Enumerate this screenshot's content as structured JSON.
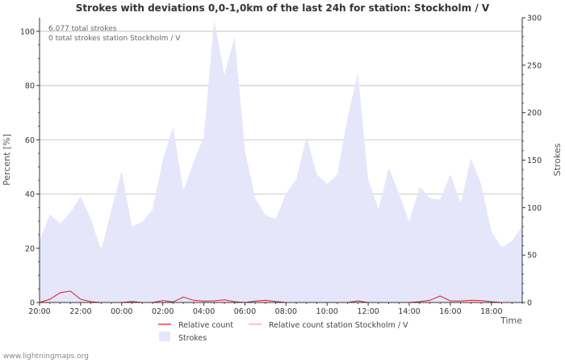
{
  "chart_data": {
    "type": "area",
    "title": "Strokes with deviations 0,0-1,0km of the last 24h for station: Stockholm / V",
    "xlabel": "Time",
    "ylabel_left": "Percent   [%]",
    "ylabel_right": "Strokes",
    "y_left_lim": [
      0,
      105
    ],
    "y_right_lim": [
      0,
      300
    ],
    "y_left_ticks": [
      0,
      20,
      40,
      60,
      80,
      100
    ],
    "y_right_ticks": [
      0,
      50,
      100,
      150,
      200,
      250,
      300
    ],
    "x_range_hours": [
      0,
      23.5
    ],
    "x_tick_hours": [
      0,
      2,
      4,
      6,
      8,
      10,
      12,
      14,
      16,
      18,
      20,
      22
    ],
    "x_tick_labels": [
      "20:00",
      "22:00",
      "00:00",
      "02:00",
      "04:00",
      "06:00",
      "08:00",
      "10:00",
      "12:00",
      "14:00",
      "16:00",
      "18:00"
    ],
    "annotations": [
      "6.077 total strokes",
      "0 total strokes station Stockholm / V"
    ],
    "legend": [
      "Relative count",
      "Relative count station Stockholm / V",
      "Strokes"
    ],
    "colors": {
      "strokes_fill": "#e6e6fb",
      "relative": "#d22222",
      "relative_station": "#f0a0a0",
      "grid": "#bbbbbb",
      "axis": "#333333"
    },
    "series": [
      {
        "name": "Strokes",
        "axis": "right",
        "x": [
          0,
          0.5,
          1,
          1.5,
          2,
          2.5,
          3,
          3.5,
          4,
          4.5,
          5,
          5.5,
          6,
          6.5,
          7,
          7.5,
          8,
          8.5,
          9,
          9.5,
          10,
          10.5,
          11,
          11.5,
          12,
          12.5,
          13,
          13.5,
          14,
          14.5,
          15,
          15.5,
          16,
          16.5,
          17,
          17.5,
          18,
          18.5,
          19,
          19.5,
          20,
          20.5,
          21,
          21.5,
          22,
          22.5,
          23,
          23.5
        ],
        "values": [
          65,
          93,
          83,
          95,
          112,
          88,
          55,
          98,
          138,
          80,
          85,
          98,
          150,
          185,
          118,
          148,
          175,
          298,
          240,
          280,
          160,
          110,
          92,
          88,
          115,
          130,
          175,
          135,
          125,
          135,
          195,
          242,
          130,
          98,
          142,
          115,
          85,
          122,
          110,
          108,
          135,
          105,
          152,
          125,
          75,
          58,
          65,
          80
        ]
      },
      {
        "name": "Relative count",
        "axis": "left",
        "x": [
          0,
          0.5,
          1,
          1.5,
          2,
          2.5,
          3,
          3.5,
          4,
          4.5,
          5,
          5.5,
          6,
          6.5,
          7,
          7.5,
          8,
          8.5,
          9,
          9.5,
          10,
          10.5,
          11,
          11.5,
          12,
          12.5,
          13,
          13.5,
          14,
          14.5,
          15,
          15.5,
          16,
          16.5,
          17,
          17.5,
          18,
          18.5,
          19,
          19.5,
          20,
          20.5,
          21,
          21.5,
          22,
          22.5,
          23,
          23.5
        ],
        "values": [
          0,
          1.2,
          3.6,
          4.2,
          1.2,
          0.3,
          0,
          0,
          0,
          0.4,
          0,
          0,
          0.7,
          0.2,
          2.0,
          0.8,
          0.5,
          0.6,
          1.0,
          0.3,
          0,
          0.5,
          0.8,
          0.4,
          0,
          0,
          0,
          0,
          0,
          0,
          0,
          0.6,
          0,
          0,
          0,
          0,
          0,
          0.3,
          0.8,
          2.4,
          0.6,
          0.5,
          0.8,
          0.7,
          0.3,
          0,
          0,
          0
        ]
      },
      {
        "name": "Relative count station Stockholm / V",
        "axis": "left",
        "x": [
          0,
          23.5
        ],
        "values": [
          0,
          0
        ]
      }
    ]
  },
  "credit": "www.lightningmaps.org"
}
